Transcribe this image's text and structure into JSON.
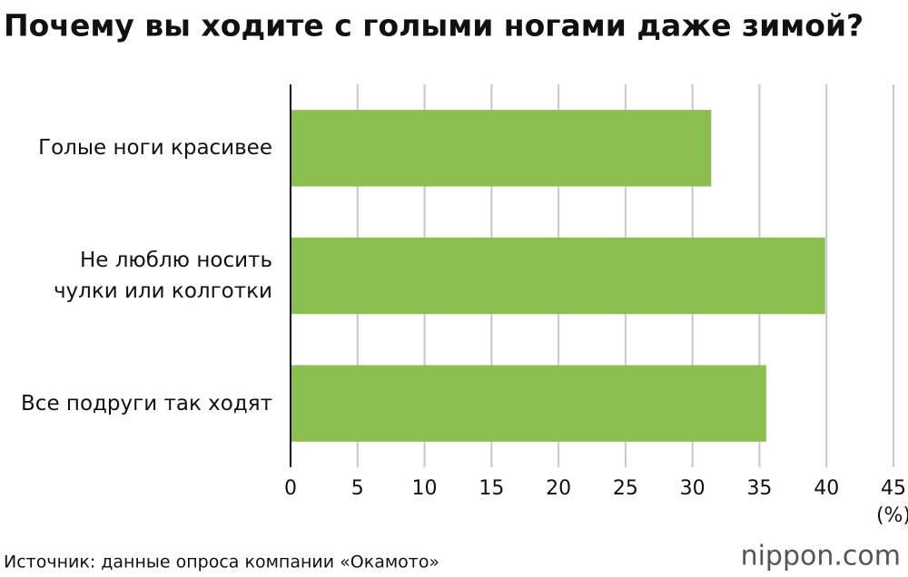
{
  "chart_data": {
    "type": "bar",
    "orientation": "horizontal",
    "title": "Почему вы ходите с голыми ногами даже зимой?",
    "categories": [
      "Голые ноги красивее",
      "Не люблю носить чулки или колготки",
      "Все подруги так ходят"
    ],
    "values": [
      31.4,
      39.9,
      35.5
    ],
    "color": "#8bbf4f",
    "xlim": [
      0,
      45
    ],
    "xticks": [
      0,
      5,
      10,
      15,
      20,
      25,
      30,
      35,
      40,
      45
    ],
    "x_unit": "(%)",
    "grid": true,
    "source": "Источник: данные опроса компании «Окамото»",
    "logo": "nippon.com"
  }
}
